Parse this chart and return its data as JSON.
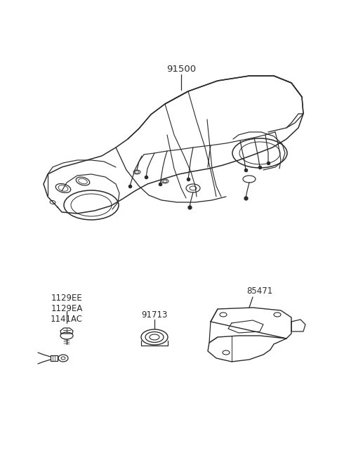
{
  "bg_color": "#ffffff",
  "line_color": "#2a2a2a",
  "label_color": "#2a2a2a",
  "car_label": "91500",
  "part1_label": "1129EE\n1129EA\n1141AC",
  "part2_label": "91713",
  "part3_label": "85471",
  "figsize": [
    4.8,
    6.55
  ],
  "dpi": 100
}
